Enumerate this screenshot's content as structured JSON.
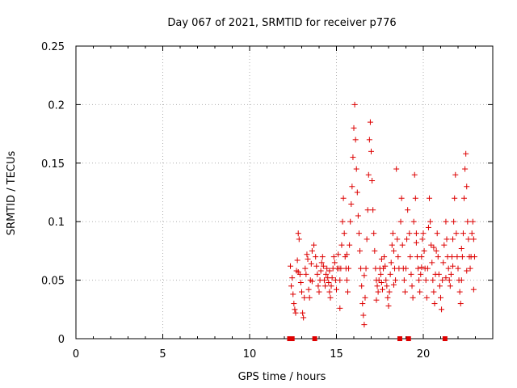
{
  "chart_data": {
    "type": "scatter",
    "title": "Day 067 of 2021, SRMTID for receiver p776",
    "xlabel": "GPS time / hours",
    "ylabel": "SRMTID / TECUs",
    "xlim": [
      0,
      24
    ],
    "ylim": [
      0,
      0.25
    ],
    "xticks": [
      "0",
      "5",
      "10",
      "15",
      "20"
    ],
    "xtick_values": [
      0,
      5,
      10,
      15,
      20
    ],
    "yticks": [
      "0",
      "0.05",
      "0.1",
      "0.15",
      "0.2",
      "0.25"
    ],
    "ytick_values": [
      0,
      0.05,
      0.1,
      0.15,
      0.2,
      0.25
    ],
    "grid": true,
    "marker": "plus",
    "color": "#dd0000",
    "gap_markers_x": [
      12.3,
      12.45,
      13.75,
      18.65,
      19.15,
      21.25
    ],
    "series": [
      {
        "name": "SRMTID",
        "points": [
          [
            12.35,
            0.062
          ],
          [
            12.4,
            0.045
          ],
          [
            12.45,
            0.052
          ],
          [
            12.5,
            0.038
          ],
          [
            12.55,
            0.03
          ],
          [
            12.6,
            0.025
          ],
          [
            12.65,
            0.022
          ],
          [
            12.7,
            0.058
          ],
          [
            12.75,
            0.067
          ],
          [
            12.8,
            0.09
          ],
          [
            12.85,
            0.085
          ],
          [
            12.9,
            0.055
          ],
          [
            12.95,
            0.048
          ],
          [
            13.0,
            0.04
          ],
          [
            13.05,
            0.022
          ],
          [
            13.1,
            0.018
          ],
          [
            13.15,
            0.035
          ],
          [
            13.2,
            0.06
          ],
          [
            13.25,
            0.055
          ],
          [
            13.3,
            0.072
          ],
          [
            13.35,
            0.068
          ],
          [
            13.4,
            0.042
          ],
          [
            13.45,
            0.035
          ],
          [
            13.5,
            0.05
          ],
          [
            13.55,
            0.064
          ],
          [
            13.6,
            0.075
          ],
          [
            13.7,
            0.08
          ],
          [
            13.8,
            0.07
          ],
          [
            13.85,
            0.062
          ],
          [
            13.9,
            0.055
          ],
          [
            13.95,
            0.045
          ],
          [
            14.0,
            0.04
          ],
          [
            14.05,
            0.05
          ],
          [
            14.1,
            0.058
          ],
          [
            14.15,
            0.065
          ],
          [
            14.2,
            0.07
          ],
          [
            14.25,
            0.062
          ],
          [
            14.3,
            0.05
          ],
          [
            14.35,
            0.045
          ],
          [
            14.4,
            0.055
          ],
          [
            14.45,
            0.06
          ],
          [
            14.5,
            0.052
          ],
          [
            14.55,
            0.048
          ],
          [
            14.6,
            0.04
          ],
          [
            14.65,
            0.035
          ],
          [
            14.7,
            0.045
          ],
          [
            14.75,
            0.052
          ],
          [
            14.8,
            0.06
          ],
          [
            14.85,
            0.07
          ],
          [
            14.9,
            0.065
          ],
          [
            14.95,
            0.05
          ],
          [
            15.0,
            0.042
          ],
          [
            15.05,
            0.06
          ],
          [
            15.1,
            0.072
          ],
          [
            15.15,
            0.06
          ],
          [
            15.2,
            0.05
          ],
          [
            15.25,
            0.06
          ],
          [
            15.3,
            0.08
          ],
          [
            15.35,
            0.1
          ],
          [
            15.4,
            0.12
          ],
          [
            15.45,
            0.09
          ],
          [
            15.5,
            0.07
          ],
          [
            15.55,
            0.06
          ],
          [
            15.6,
            0.05
          ],
          [
            15.65,
            0.04
          ],
          [
            15.7,
            0.06
          ],
          [
            15.75,
            0.08
          ],
          [
            15.8,
            0.1
          ],
          [
            15.85,
            0.115
          ],
          [
            15.9,
            0.13
          ],
          [
            15.95,
            0.155
          ],
          [
            16.0,
            0.18
          ],
          [
            16.05,
            0.2
          ],
          [
            16.1,
            0.17
          ],
          [
            16.15,
            0.145
          ],
          [
            16.2,
            0.125
          ],
          [
            16.25,
            0.105
          ],
          [
            16.3,
            0.09
          ],
          [
            16.35,
            0.075
          ],
          [
            16.4,
            0.06
          ],
          [
            16.45,
            0.045
          ],
          [
            16.5,
            0.03
          ],
          [
            16.55,
            0.02
          ],
          [
            16.6,
            0.012
          ],
          [
            16.65,
            0.035
          ],
          [
            16.7,
            0.06
          ],
          [
            16.75,
            0.085
          ],
          [
            16.8,
            0.11
          ],
          [
            16.85,
            0.14
          ],
          [
            16.9,
            0.17
          ],
          [
            16.95,
            0.185
          ],
          [
            17.0,
            0.16
          ],
          [
            17.05,
            0.135
          ],
          [
            17.1,
            0.11
          ],
          [
            17.15,
            0.09
          ],
          [
            17.2,
            0.075
          ],
          [
            17.25,
            0.06
          ],
          [
            17.3,
            0.05
          ],
          [
            17.35,
            0.045
          ],
          [
            17.4,
            0.04
          ],
          [
            17.45,
            0.05
          ],
          [
            17.5,
            0.06
          ],
          [
            17.55,
            0.055
          ],
          [
            17.6,
            0.048
          ],
          [
            17.65,
            0.042
          ],
          [
            17.7,
            0.06
          ],
          [
            17.75,
            0.07
          ],
          [
            17.8,
            0.062
          ],
          [
            17.85,
            0.05
          ],
          [
            17.9,
            0.045
          ],
          [
            17.95,
            0.035
          ],
          [
            18.0,
            0.028
          ],
          [
            18.05,
            0.04
          ],
          [
            18.1,
            0.055
          ],
          [
            18.15,
            0.065
          ],
          [
            18.2,
            0.08
          ],
          [
            18.25,
            0.09
          ],
          [
            18.3,
            0.075
          ],
          [
            18.35,
            0.06
          ],
          [
            18.4,
            0.05
          ],
          [
            18.45,
            0.145
          ],
          [
            18.5,
            0.085
          ],
          [
            18.55,
            0.07
          ],
          [
            18.6,
            0.06
          ],
          [
            18.7,
            0.1
          ],
          [
            18.75,
            0.12
          ],
          [
            18.8,
            0.08
          ],
          [
            18.85,
            0.06
          ],
          [
            18.9,
            0.05
          ],
          [
            18.95,
            0.04
          ],
          [
            19.0,
            0.06
          ],
          [
            19.05,
            0.085
          ],
          [
            19.1,
            0.11
          ],
          [
            19.2,
            0.09
          ],
          [
            19.25,
            0.07
          ],
          [
            19.3,
            0.055
          ],
          [
            19.35,
            0.045
          ],
          [
            19.4,
            0.035
          ],
          [
            19.45,
            0.1
          ],
          [
            19.5,
            0.14
          ],
          [
            19.55,
            0.12
          ],
          [
            19.6,
            0.09
          ],
          [
            19.65,
            0.07
          ],
          [
            19.7,
            0.06
          ],
          [
            19.75,
            0.05
          ],
          [
            19.8,
            0.04
          ],
          [
            19.85,
            0.055
          ],
          [
            19.9,
            0.07
          ],
          [
            19.95,
            0.085
          ],
          [
            20.0,
            0.09
          ],
          [
            20.05,
            0.075
          ],
          [
            20.1,
            0.06
          ],
          [
            20.15,
            0.05
          ],
          [
            20.2,
            0.035
          ],
          [
            20.25,
            0.06
          ],
          [
            20.3,
            0.095
          ],
          [
            20.35,
            0.12
          ],
          [
            20.4,
            0.1
          ],
          [
            20.45,
            0.08
          ],
          [
            20.5,
            0.065
          ],
          [
            20.55,
            0.05
          ],
          [
            20.6,
            0.04
          ],
          [
            20.65,
            0.03
          ],
          [
            20.7,
            0.055
          ],
          [
            20.75,
            0.075
          ],
          [
            20.8,
            0.09
          ],
          [
            20.85,
            0.07
          ],
          [
            20.9,
            0.055
          ],
          [
            20.95,
            0.045
          ],
          [
            21.0,
            0.035
          ],
          [
            21.05,
            0.025
          ],
          [
            21.1,
            0.05
          ],
          [
            21.15,
            0.065
          ],
          [
            21.2,
            0.08
          ],
          [
            21.3,
            0.1
          ],
          [
            21.35,
            0.085
          ],
          [
            21.4,
            0.07
          ],
          [
            21.45,
            0.06
          ],
          [
            21.5,
            0.05
          ],
          [
            21.55,
            0.045
          ],
          [
            21.6,
            0.055
          ],
          [
            21.65,
            0.07
          ],
          [
            21.7,
            0.085
          ],
          [
            21.75,
            0.1
          ],
          [
            21.8,
            0.12
          ],
          [
            21.85,
            0.14
          ],
          [
            21.9,
            0.09
          ],
          [
            21.95,
            0.07
          ],
          [
            22.0,
            0.06
          ],
          [
            22.05,
            0.05
          ],
          [
            22.1,
            0.04
          ],
          [
            22.15,
            0.03
          ],
          [
            22.2,
            0.05
          ],
          [
            22.25,
            0.07
          ],
          [
            22.3,
            0.09
          ],
          [
            22.35,
            0.12
          ],
          [
            22.4,
            0.145
          ],
          [
            22.45,
            0.158
          ],
          [
            22.5,
            0.13
          ],
          [
            22.55,
            0.1
          ],
          [
            22.6,
            0.085
          ],
          [
            22.65,
            0.07
          ],
          [
            22.7,
            0.06
          ],
          [
            22.75,
            0.07
          ],
          [
            22.8,
            0.09
          ],
          [
            22.85,
            0.1
          ],
          [
            22.9,
            0.085
          ],
          [
            22.95,
            0.07
          ],
          [
            22.9,
            0.042
          ],
          [
            22.5,
            0.058
          ],
          [
            21.7,
            0.062
          ],
          [
            20.6,
            0.078
          ],
          [
            19.6,
            0.082
          ],
          [
            18.3,
            0.046
          ],
          [
            17.6,
            0.068
          ],
          [
            16.6,
            0.054
          ],
          [
            15.6,
            0.072
          ],
          [
            14.6,
            0.058
          ],
          [
            13.6,
            0.049
          ],
          [
            12.8,
            0.057
          ],
          [
            15.2,
            0.026
          ],
          [
            17.3,
            0.033
          ],
          [
            19.9,
            0.061
          ],
          [
            21.3,
            0.052
          ],
          [
            22.2,
            0.077
          ]
        ]
      }
    ]
  }
}
